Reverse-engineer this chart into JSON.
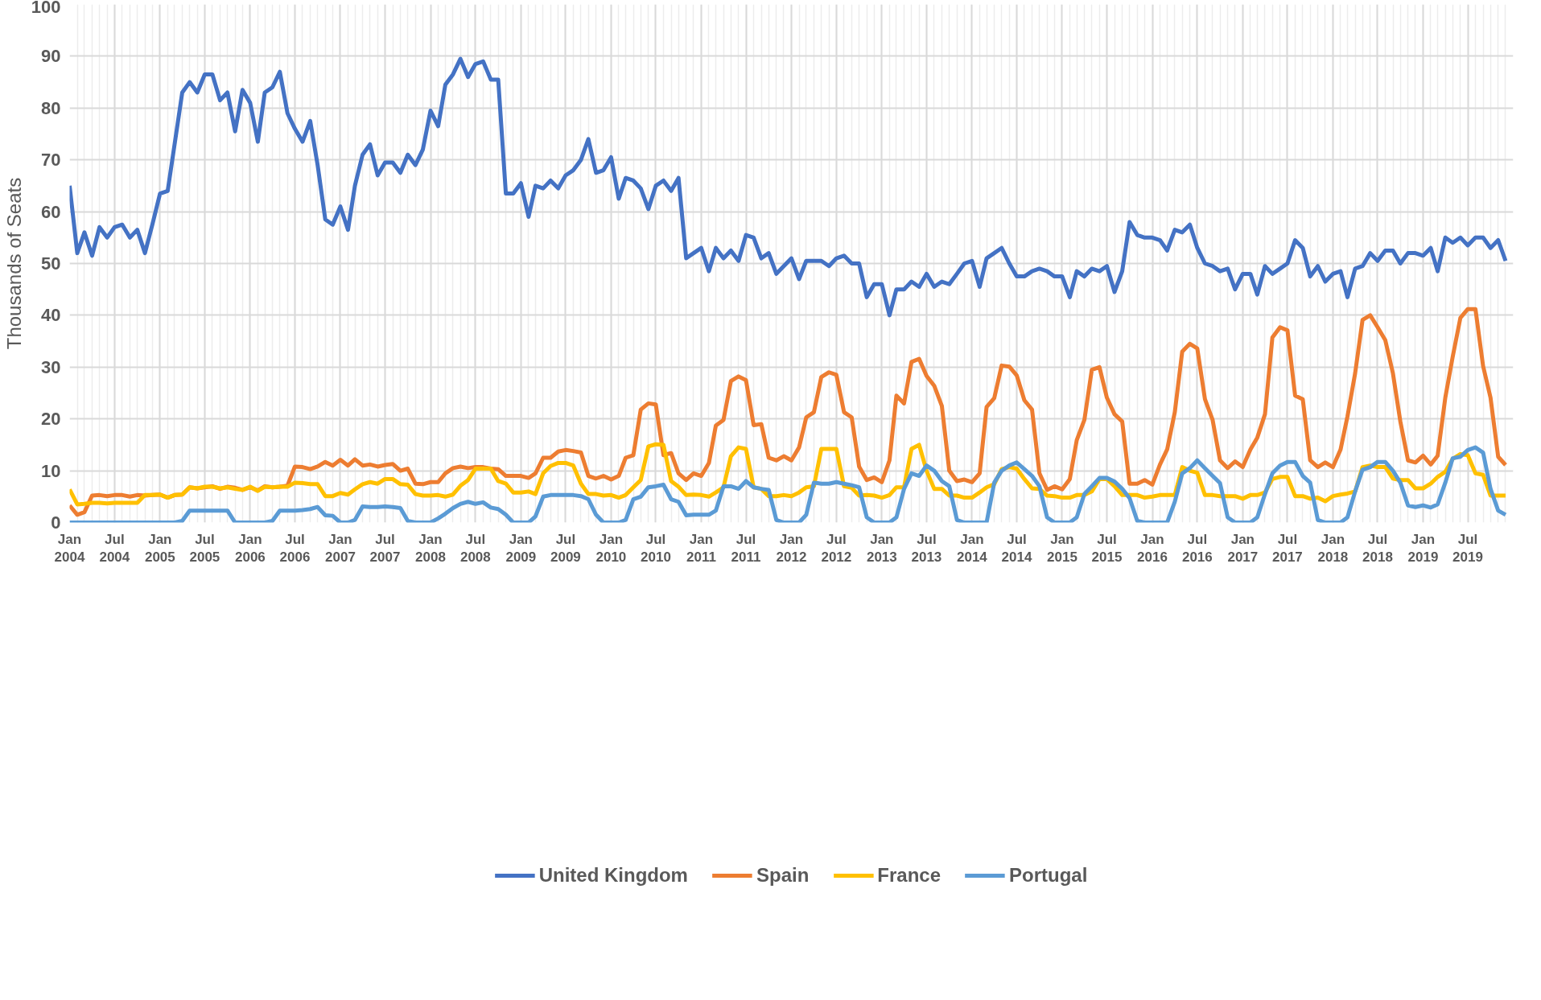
{
  "chart_data": {
    "type": "line",
    "ylabel": "Thousands of Seats",
    "x": [
      "2004-01",
      "2004-02",
      "2004-03",
      "2004-04",
      "2004-05",
      "2004-06",
      "2004-07",
      "2004-08",
      "2004-09",
      "2004-10",
      "2004-11",
      "2004-12",
      "2005-01",
      "2005-02",
      "2005-03",
      "2005-04",
      "2005-05",
      "2005-06",
      "2005-07",
      "2005-08",
      "2005-09",
      "2005-10",
      "2005-11",
      "2005-12",
      "2006-01",
      "2006-02",
      "2006-03",
      "2006-04",
      "2006-05",
      "2006-06",
      "2006-07",
      "2006-08",
      "2006-09",
      "2006-10",
      "2006-11",
      "2006-12",
      "2007-01",
      "2007-02",
      "2007-03",
      "2007-04",
      "2007-05",
      "2007-06",
      "2007-07",
      "2007-08",
      "2007-09",
      "2007-10",
      "2007-11",
      "2007-12",
      "2008-01",
      "2008-02",
      "2008-03",
      "2008-04",
      "2008-05",
      "2008-06",
      "2008-07",
      "2008-08",
      "2008-09",
      "2008-10",
      "2008-11",
      "2008-12",
      "2009-01",
      "2009-02",
      "2009-03",
      "2009-04",
      "2009-05",
      "2009-06",
      "2009-07",
      "2009-08",
      "2009-09",
      "2009-10",
      "2009-11",
      "2009-12",
      "2010-01",
      "2010-02",
      "2010-03",
      "2010-04",
      "2010-05",
      "2010-06",
      "2010-07",
      "2010-08",
      "2010-09",
      "2010-10",
      "2010-11",
      "2010-12",
      "2011-01",
      "2011-02",
      "2011-03",
      "2011-04",
      "2011-05",
      "2011-06",
      "2011-07",
      "2011-08",
      "2011-09",
      "2011-10",
      "2011-11",
      "2011-12",
      "2012-01",
      "2012-02",
      "2012-03",
      "2012-04",
      "2012-05",
      "2012-06",
      "2012-07",
      "2012-08",
      "2012-09",
      "2012-10",
      "2012-11",
      "2012-12",
      "2013-01",
      "2013-02",
      "2013-03",
      "2013-04",
      "2013-05",
      "2013-06",
      "2013-07",
      "2013-08",
      "2013-09",
      "2013-10",
      "2013-11",
      "2013-12",
      "2014-01",
      "2014-02",
      "2014-03",
      "2014-04",
      "2014-05",
      "2014-06",
      "2014-07",
      "2014-08",
      "2014-09",
      "2014-10",
      "2014-11",
      "2014-12",
      "2015-01",
      "2015-02",
      "2015-03",
      "2015-04",
      "2015-05",
      "2015-06",
      "2015-07",
      "2015-08",
      "2015-09",
      "2015-10",
      "2015-11",
      "2015-12",
      "2016-01",
      "2016-02",
      "2016-03",
      "2016-04",
      "2016-05",
      "2016-06",
      "2016-07",
      "2016-08",
      "2016-09",
      "2016-10",
      "2016-11",
      "2016-12",
      "2017-01",
      "2017-02",
      "2017-03",
      "2017-04",
      "2017-05",
      "2017-06",
      "2017-07",
      "2017-08",
      "2017-09",
      "2017-10",
      "2017-11",
      "2017-12",
      "2018-01",
      "2018-02",
      "2018-03",
      "2018-04",
      "2018-05",
      "2018-06",
      "2018-07",
      "2018-08",
      "2018-09",
      "2018-10",
      "2018-11",
      "2018-12",
      "2019-01",
      "2019-02",
      "2019-03",
      "2019-04",
      "2019-05",
      "2019-06",
      "2019-07",
      "2019-08",
      "2019-09",
      "2019-10",
      "2019-11",
      "2019-12"
    ],
    "series": [
      {
        "name": "United Kingdom",
        "color": "#4472c4",
        "values": [
          65,
          52,
          56,
          51.5,
          57,
          55,
          57,
          57.5,
          55,
          56.5,
          52,
          57.5,
          63.5,
          64,
          73,
          83,
          85,
          83,
          86.5,
          86.5,
          81.5,
          83,
          75.5,
          83.5,
          81,
          73.5,
          83,
          84,
          87,
          79,
          76,
          73.5,
          77.5,
          69,
          58.5,
          57.5,
          61,
          56.5,
          65,
          71,
          73,
          67,
          69.5,
          69.5,
          67.5,
          71,
          69,
          72,
          79.5,
          76.5,
          84.5,
          86.5,
          89.5,
          86,
          88.5,
          89,
          85.5,
          85.5,
          63.5,
          63.5,
          65.5,
          59,
          65,
          64.5,
          66,
          64.5,
          67,
          68,
          70,
          74,
          67.5,
          68,
          70.5,
          62.5,
          66.5,
          66,
          64.5,
          60.5,
          65,
          66,
          64,
          66.5,
          51,
          52,
          53,
          48.5,
          53,
          51,
          52.5,
          50.5,
          55.5,
          55,
          51,
          52,
          48,
          49.5,
          51,
          47,
          50.5,
          50.5,
          50.5,
          49.5,
          51,
          51.5,
          50,
          50,
          43.5,
          46,
          46,
          40,
          45,
          45,
          46.5,
          45.5,
          48,
          45.5,
          46.5,
          46,
          48,
          50,
          50.5,
          45.5,
          51,
          52,
          53,
          50,
          47.5,
          47.5,
          48.5,
          49,
          48.5,
          47.5,
          47.5,
          43.5,
          48.5,
          47.5,
          49,
          48.5,
          49.5,
          44.5,
          48.5,
          58,
          55.5,
          55,
          55,
          54.5,
          52.5,
          56.5,
          56,
          57.5,
          53,
          50,
          49.5,
          48.5,
          49,
          45,
          48,
          48,
          44,
          49.5,
          48,
          49,
          50,
          54.5,
          53,
          47.5,
          49.5,
          46.5,
          48,
          48.5,
          43.5,
          49,
          49.5,
          52,
          50.5,
          52.5,
          52.5,
          50,
          52,
          52,
          51.5,
          53,
          48.5,
          55,
          54,
          55,
          53.5,
          55,
          55,
          53,
          54.5,
          50.5
        ]
      },
      {
        "name": "Spain",
        "color": "#ed7d31",
        "values": [
          3.3,
          1.5,
          2,
          5.2,
          5.3,
          5.1,
          5.3,
          5.3,
          5,
          5.3,
          5.2,
          5.3,
          5.4,
          4.8,
          5.3,
          5.4,
          6.8,
          6.6,
          6.8,
          7,
          6.5,
          6.9,
          6.7,
          6.3,
          6.8,
          6.2,
          7,
          6.8,
          6.9,
          7.1,
          10.8,
          10.7,
          10.3,
          10.8,
          11.7,
          11,
          12.1,
          11,
          12.2,
          11,
          11.2,
          10.8,
          11.1,
          11.3,
          10,
          10.4,
          7.5,
          7.4,
          7.8,
          7.8,
          9.5,
          10.5,
          10.8,
          10.5,
          10.7,
          10.7,
          10.4,
          10.3,
          9,
          9,
          9,
          8.6,
          9.5,
          12.5,
          12.5,
          13.7,
          14,
          13.8,
          13.5,
          9,
          8.5,
          9,
          8.3,
          9,
          12.5,
          13,
          21.8,
          23,
          22.8,
          13,
          13.4,
          9.5,
          8.2,
          9.5,
          9,
          11.5,
          18.7,
          19.8,
          27.3,
          28.2,
          27.5,
          18.8,
          19,
          12.5,
          12,
          12.8,
          12,
          14.5,
          20.3,
          21.3,
          28.1,
          29,
          28.5,
          21.3,
          20.3,
          10.8,
          8.2,
          8.7,
          7.8,
          12,
          24.5,
          23,
          31,
          31.6,
          28.3,
          26.4,
          22.5,
          10,
          8,
          8.3,
          7.8,
          9.5,
          22.3,
          24,
          30.3,
          30.1,
          28.4,
          23.6,
          21.8,
          9.5,
          6.3,
          7,
          6.4,
          8.4,
          15.9,
          19.8,
          29.5,
          30,
          24.1,
          20.9,
          19.5,
          7.5,
          7.5,
          8.2,
          7.3,
          11.2,
          14.1,
          21.3,
          33,
          34.5,
          33.6,
          23.8,
          19.8,
          12,
          10.5,
          11.8,
          10.7,
          14.1,
          16.4,
          20.9,
          35.7,
          37.7,
          37.1,
          24.5,
          23.8,
          12,
          10.7,
          11.6,
          10.7,
          14.1,
          20.5,
          28.8,
          39.1,
          40,
          37.7,
          35.2,
          28.8,
          19.5,
          12,
          11.6,
          12.9,
          11.2,
          12.9,
          24.1,
          32,
          39.5,
          41.2,
          41.2,
          30.2,
          24.1,
          12.7,
          11.1
        ]
      },
      {
        "name": "France",
        "color": "#ffc000",
        "values": [
          6.4,
          3.5,
          3.6,
          3.8,
          3.8,
          3.7,
          3.8,
          3.8,
          3.8,
          3.8,
          5.3,
          5.3,
          5.4,
          4.8,
          5.3,
          5.4,
          6.8,
          6.6,
          6.9,
          6.9,
          6.6,
          6.8,
          6.5,
          6.3,
          6.9,
          6.1,
          6.9,
          6.8,
          6.9,
          6.9,
          7.7,
          7.6,
          7.4,
          7.4,
          5.1,
          5.1,
          5.7,
          5.4,
          6.4,
          7.4,
          7.8,
          7.5,
          8.4,
          8.4,
          7.4,
          7.3,
          5.5,
          5.2,
          5.2,
          5.3,
          5,
          5.4,
          7.1,
          8.2,
          10.4,
          10.4,
          10.4,
          8,
          7.5,
          5.8,
          5.8,
          6,
          5.5,
          9.5,
          10.9,
          11.5,
          11.5,
          11,
          7.5,
          5.5,
          5.5,
          5.2,
          5.3,
          4.8,
          5.3,
          6.8,
          8.2,
          14.7,
          15.1,
          15,
          8,
          6.9,
          5.3,
          5.4,
          5.3,
          5,
          5.8,
          6.8,
          12.8,
          14.5,
          14.2,
          6.8,
          6.5,
          5.1,
          5.1,
          5.3,
          5.1,
          5.8,
          6.8,
          7,
          14.2,
          14.2,
          14.2,
          7,
          6.7,
          5.2,
          5.3,
          5.2,
          4.8,
          5.3,
          6.8,
          6.8,
          14.2,
          15,
          10,
          6.5,
          6.5,
          5.2,
          5.2,
          4.8,
          4.8,
          5.8,
          6.8,
          7.4,
          10.3,
          10.7,
          10.4,
          8.4,
          6.6,
          6.5,
          5.2,
          5.1,
          4.8,
          4.8,
          5.3,
          5.3,
          6,
          8.4,
          8.4,
          7,
          5.3,
          5.3,
          5.3,
          4.8,
          5,
          5.3,
          5.3,
          5.3,
          10.7,
          10,
          9.6,
          5.3,
          5.3,
          5.1,
          5.1,
          5.1,
          4.6,
          5.3,
          5.3,
          5.8,
          8.4,
          8.8,
          8.8,
          5.1,
          5.1,
          4.6,
          4.8,
          4.1,
          5.1,
          5.4,
          5.6,
          6,
          10.7,
          11,
          10.7,
          10.7,
          8.5,
          8.2,
          8.2,
          6.6,
          6.6,
          7.5,
          8.8,
          9.8,
          12.3,
          13.2,
          13,
          9.5,
          9.2,
          5.2,
          5.2,
          5.2
        ]
      },
      {
        "name": "Portugal",
        "color": "#5b9bd5",
        "values": [
          0,
          0,
          0,
          0,
          0,
          0,
          0,
          0,
          0,
          0,
          0,
          0,
          0,
          0,
          0,
          0.3,
          2.3,
          2.3,
          2.3,
          2.3,
          2.3,
          2.3,
          0,
          0,
          0,
          0,
          0,
          0.3,
          2.3,
          2.3,
          2.3,
          2.4,
          2.6,
          3,
          1.4,
          1.3,
          0,
          0,
          0.5,
          3.1,
          3,
          3,
          3.1,
          3,
          2.8,
          0.3,
          0,
          0,
          0,
          0.8,
          1.7,
          2.8,
          3.6,
          4,
          3.6,
          3.9,
          2.9,
          2.6,
          1.5,
          0,
          0,
          0,
          1.2,
          5,
          5.3,
          5.3,
          5.3,
          5.3,
          5.1,
          4.5,
          1.5,
          0,
          0,
          0,
          0.5,
          4.5,
          5,
          6.8,
          7,
          7.3,
          4.5,
          4,
          1.4,
          1.5,
          1.5,
          1.5,
          2.3,
          7,
          7,
          6.5,
          8,
          6.8,
          6.5,
          6.3,
          0.5,
          0,
          0,
          0,
          1.5,
          7.7,
          7.5,
          7.5,
          7.8,
          7.5,
          7.2,
          6.8,
          1,
          0,
          0,
          0,
          1,
          6.5,
          9.5,
          9,
          11,
          10,
          8,
          7,
          0.5,
          0,
          0,
          0,
          0,
          7.7,
          10,
          11,
          11.6,
          10.3,
          9,
          7,
          1,
          0,
          0,
          0,
          1,
          5.5,
          7,
          8.6,
          8.6,
          7.9,
          6.5,
          4.7,
          0.3,
          0,
          0,
          0,
          0,
          4,
          9.5,
          10.5,
          12,
          10.5,
          9,
          7.6,
          1,
          0,
          0,
          0,
          1,
          5.5,
          9.5,
          11,
          11.7,
          11.7,
          9,
          7.7,
          0.5,
          0,
          0,
          0,
          1,
          6,
          10.2,
          10.7,
          11.7,
          11.7,
          10,
          7.7,
          3.3,
          3,
          3.3,
          2.9,
          3.5,
          7.7,
          12.4,
          12.7,
          14,
          14.5,
          13.5,
          6.5,
          2.3,
          1.5
        ]
      }
    ],
    "xlim": [
      "2004-01",
      "2020-01"
    ],
    "xticks": [
      {
        "value": "2004-01",
        "label": "Jan\n2004"
      },
      {
        "value": "2004-07",
        "label": "Jul\n2004"
      },
      {
        "value": "2005-01",
        "label": "Jan\n2005"
      },
      {
        "value": "2005-07",
        "label": "Jul\n2005"
      },
      {
        "value": "2006-01",
        "label": "Jan\n2006"
      },
      {
        "value": "2006-07",
        "label": "Jul\n2006"
      },
      {
        "value": "2007-01",
        "label": "Jan\n2007"
      },
      {
        "value": "2007-07",
        "label": "Jul\n2007"
      },
      {
        "value": "2008-01",
        "label": "Jan\n2008"
      },
      {
        "value": "2008-07",
        "label": "Jul\n2008"
      },
      {
        "value": "2009-01",
        "label": "Jan\n2009"
      },
      {
        "value": "2009-07",
        "label": "Jul\n2009"
      },
      {
        "value": "2010-01",
        "label": "Jan\n2010"
      },
      {
        "value": "2010-07",
        "label": "Jul\n2010"
      },
      {
        "value": "2011-01",
        "label": "Jan\n2011"
      },
      {
        "value": "2011-07",
        "label": "Jul\n2011"
      },
      {
        "value": "2012-01",
        "label": "Jan\n2012"
      },
      {
        "value": "2012-07",
        "label": "Jul\n2012"
      },
      {
        "value": "2013-01",
        "label": "Jan\n2013"
      },
      {
        "value": "2013-07",
        "label": "Jul\n2013"
      },
      {
        "value": "2014-01",
        "label": "Jan\n2014"
      },
      {
        "value": "2014-07",
        "label": "Jul\n2014"
      },
      {
        "value": "2015-01",
        "label": "Jan\n2015"
      },
      {
        "value": "2015-07",
        "label": "Jul\n2015"
      },
      {
        "value": "2016-01",
        "label": "Jan\n2016"
      },
      {
        "value": "2016-07",
        "label": "Jul\n2016"
      },
      {
        "value": "2017-01",
        "label": "Jan\n2017"
      },
      {
        "value": "2017-07",
        "label": "Jul\n2017"
      },
      {
        "value": "2018-01",
        "label": "Jan\n2018"
      },
      {
        "value": "2018-07",
        "label": "Jul\n2018"
      },
      {
        "value": "2019-01",
        "label": "Jan\n2019"
      },
      {
        "value": "2019-07",
        "label": "Jul\n2019"
      }
    ],
    "ylim": [
      0,
      100
    ],
    "yticks": [
      0,
      10,
      20,
      30,
      40,
      50,
      60,
      70,
      80,
      90,
      100
    ],
    "grid": true,
    "legend": "bottom",
    "marker": "none",
    "line_style": "solid"
  }
}
